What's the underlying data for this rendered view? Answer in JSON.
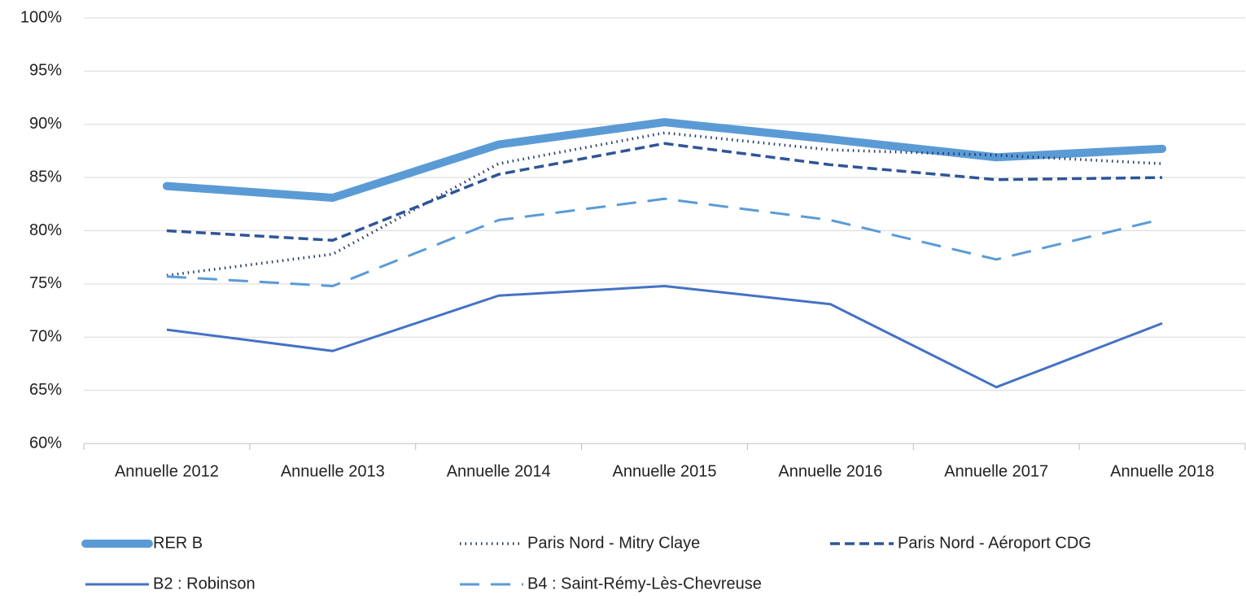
{
  "chart_data": {
    "type": "line",
    "categories": [
      "Annuelle 2012",
      "Annuelle 2013",
      "Annuelle 2014",
      "Annuelle 2015",
      "Annuelle 2016",
      "Annuelle 2017",
      "Annuelle 2018"
    ],
    "series": [
      {
        "name": "RER B",
        "color": "#5b9bd5",
        "style": "thick",
        "values": [
          84.2,
          83.1,
          88.1,
          90.2,
          88.6,
          86.9,
          87.7
        ]
      },
      {
        "name": "Paris Nord - Mitry Claye",
        "color": "#203864",
        "style": "dotted",
        "values": [
          75.8,
          77.8,
          86.3,
          89.2,
          87.6,
          87.1,
          86.3
        ]
      },
      {
        "name": "Paris Nord - Aéroport CDG",
        "color": "#2f5597",
        "style": "dashed",
        "values": [
          80.0,
          79.1,
          85.3,
          88.2,
          86.2,
          84.8,
          85.0
        ]
      },
      {
        "name": "B2 : Robinson",
        "color": "#4472c4",
        "style": "solid",
        "values": [
          70.7,
          68.7,
          73.9,
          74.8,
          73.1,
          65.3,
          71.3
        ]
      },
      {
        "name": "B4 : Saint-Rémy-Lès-Chevreuse",
        "color": "#5b9bd5",
        "style": "long-dash",
        "values": [
          75.7,
          74.8,
          81.0,
          83.0,
          81.0,
          77.3,
          81.1
        ]
      }
    ],
    "ylim": [
      60,
      100
    ],
    "yticks": [
      {
        "value": 60,
        "label": "60%"
      },
      {
        "value": 65,
        "label": "65%"
      },
      {
        "value": 70,
        "label": "70%"
      },
      {
        "value": 75,
        "label": "75%"
      },
      {
        "value": 80,
        "label": "80%"
      },
      {
        "value": 85,
        "label": "85%"
      },
      {
        "value": 90,
        "label": "90%"
      },
      {
        "value": 95,
        "label": "95%"
      },
      {
        "value": 100,
        "label": "100%"
      }
    ],
    "grid": true,
    "legend": "bottom"
  }
}
